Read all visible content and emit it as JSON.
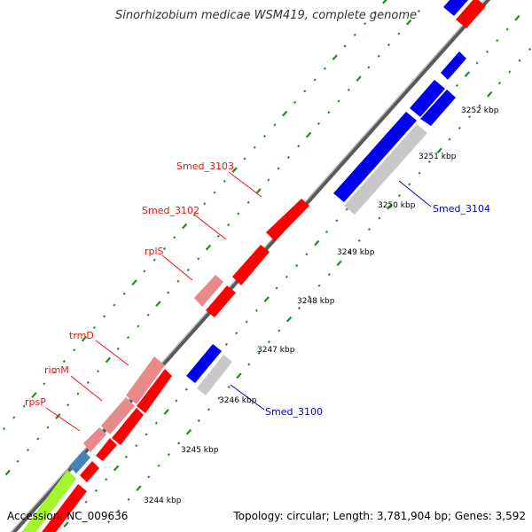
{
  "title": "Sinorhizobium medicae WSM419, complete genome",
  "accession": "Accession: NC_009636",
  "topology": "Topology: circular; Length: 3,781,904 bp; Genes: 3,592",
  "colors": {
    "forward_gene": "#ff0000",
    "forward_gene_light": "#e88a8a",
    "reverse_gene": "#0000ee",
    "pseudo_gene": "#c8c8c8",
    "steelblue_gene": "#4682b4",
    "lime_gene": "#a4f52c",
    "backbone": "#888888",
    "tick": "#228b22",
    "label_red": "#ee1111",
    "label_blue": "#0000cc"
  },
  "ticks": [
    {
      "label": "3244 kbp"
    },
    {
      "label": "3245 kbp"
    },
    {
      "label": "3246 kbp"
    },
    {
      "label": "3247 kbp"
    },
    {
      "label": "3248 kbp"
    },
    {
      "label": "3249 kbp"
    },
    {
      "label": "3250 kbp"
    },
    {
      "label": "3251 kbp"
    },
    {
      "label": "3252 kbp"
    }
  ],
  "gene_labels": [
    {
      "name": "Smed_3103",
      "color": "label_red"
    },
    {
      "name": "Smed_3102",
      "color": "label_red"
    },
    {
      "name": "rplS",
      "color": "label_red"
    },
    {
      "name": "trmD",
      "color": "label_red"
    },
    {
      "name": "rimM",
      "color": "label_red"
    },
    {
      "name": "rpsP",
      "color": "label_red"
    },
    {
      "name": "Smed_3104",
      "color": "label_blue"
    },
    {
      "name": "Smed_3100",
      "color": "label_blue"
    }
  ]
}
